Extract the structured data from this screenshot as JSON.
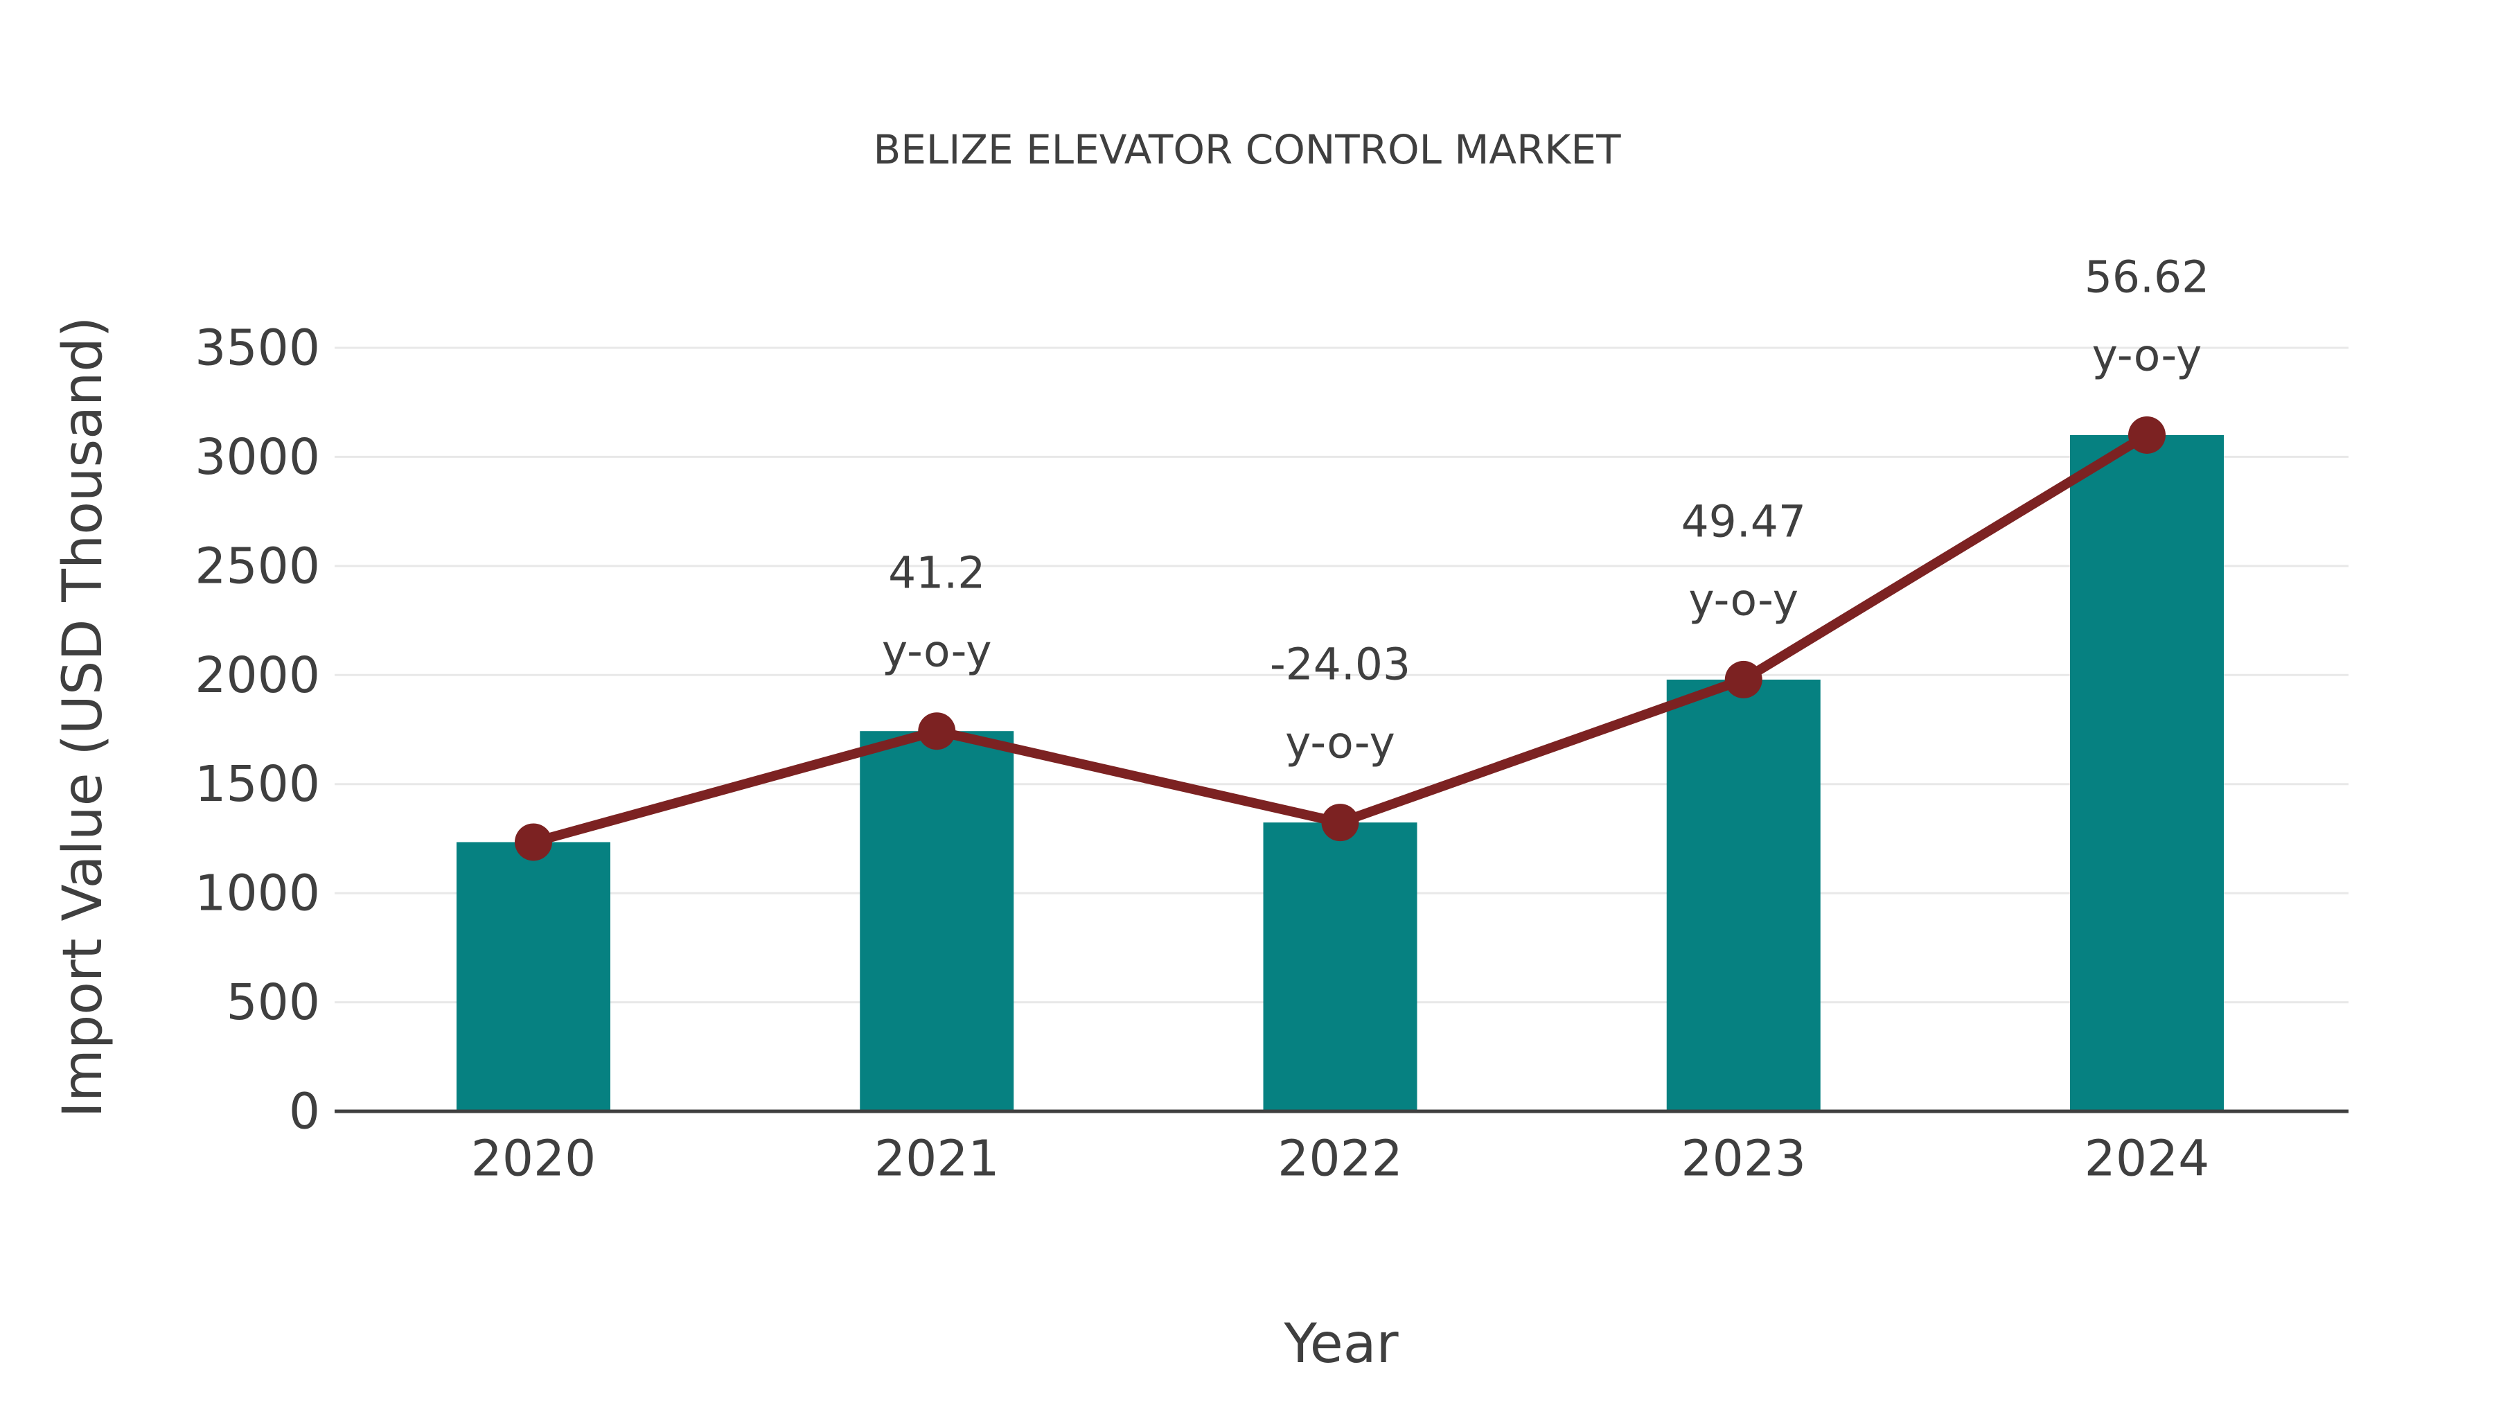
{
  "chart_data": {
    "type": "bar+line",
    "title": "BELIZE ELEVATOR CONTROL MARKET",
    "xlabel": "Year",
    "ylabel": "Import Value (USD Thousand)",
    "categories": [
      "2020",
      "2021",
      "2022",
      "2023",
      "2024"
    ],
    "series": [
      {
        "name": "Import Value (bars)",
        "type": "bar",
        "color": "#068181",
        "values": [
          1234,
          1743,
          1324,
          1979,
          3100
        ]
      },
      {
        "name": "Import Value (trend line)",
        "type": "line",
        "color": "#7C2222",
        "values": [
          1234,
          1743,
          1324,
          1979,
          3100
        ]
      }
    ],
    "annotations": [
      {
        "category": "2021",
        "line1": "41.2",
        "line2": "y-o-y"
      },
      {
        "category": "2022",
        "line1": "-24.03",
        "line2": "y-o-y"
      },
      {
        "category": "2023",
        "line1": "49.47",
        "line2": "y-o-y"
      },
      {
        "category": "2024",
        "line1": "56.62",
        "line2": "y-o-y"
      }
    ],
    "yticks": [
      0,
      500,
      1000,
      1500,
      2000,
      2500,
      3000,
      3500
    ],
    "ylim": [
      0,
      3500
    ],
    "grid": "horizontal",
    "legend": "none",
    "colors": {
      "bar": "#068181",
      "line": "#7C2222",
      "text": "#3F3F3F",
      "gridline": "#E8E8E8",
      "axis": "#3F3F3F",
      "background": "#FFFFFF"
    }
  }
}
